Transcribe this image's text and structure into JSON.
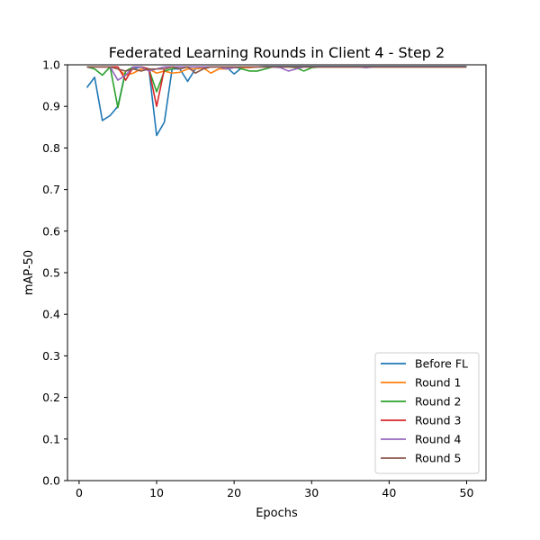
{
  "chart_data": {
    "type": "line",
    "title": "Federated Learning Rounds in Client 4 - Step 2",
    "xlabel": "Epochs",
    "ylabel": "mAP-50",
    "xlim": [
      -1.5,
      52.5
    ],
    "ylim": [
      0.0,
      1.0
    ],
    "xticks": [
      0,
      10,
      20,
      30,
      40,
      50
    ],
    "yticks": [
      0.0,
      0.1,
      0.2,
      0.3,
      0.4,
      0.5,
      0.6,
      0.7,
      0.8,
      0.9,
      1.0
    ],
    "xtick_labels": [
      "0",
      "10",
      "20",
      "30",
      "40",
      "50"
    ],
    "ytick_labels": [
      "0.0",
      "0.1",
      "0.2",
      "0.3",
      "0.4",
      "0.5",
      "0.6",
      "0.7",
      "0.8",
      "0.9",
      "1.0"
    ],
    "grid": false,
    "legend_position": "lower-right",
    "x": [
      1,
      2,
      3,
      4,
      5,
      6,
      7,
      8,
      9,
      10,
      11,
      12,
      13,
      14,
      15,
      16,
      17,
      18,
      19,
      20,
      21,
      22,
      23,
      24,
      25,
      26,
      27,
      28,
      29,
      30,
      31,
      32,
      33,
      34,
      35,
      36,
      37,
      38,
      39,
      40,
      41,
      42,
      43,
      44,
      45,
      46,
      47,
      48,
      49,
      50
    ],
    "series": [
      {
        "name": "Before FL",
        "color": "#1f77b4",
        "values": [
          0.945,
          0.97,
          0.866,
          0.878,
          0.9,
          0.985,
          0.99,
          0.995,
          0.99,
          0.83,
          0.862,
          0.99,
          0.99,
          0.96,
          0.99,
          0.993,
          0.995,
          0.995,
          0.995,
          0.978,
          0.993,
          0.995,
          0.995,
          0.996,
          0.996,
          0.996,
          0.996,
          0.996,
          0.996,
          0.996,
          0.996,
          0.996,
          0.996,
          0.996,
          0.996,
          0.996,
          0.996,
          0.996,
          0.996,
          0.996,
          0.996,
          0.996,
          0.996,
          0.996,
          0.996,
          0.996,
          0.996,
          0.996,
          0.996,
          0.996
        ]
      },
      {
        "name": "Round 1",
        "color": "#ff7f0e",
        "values": [
          0.995,
          0.995,
          0.995,
          0.995,
          0.99,
          0.975,
          0.98,
          0.99,
          0.99,
          0.98,
          0.985,
          0.98,
          0.982,
          0.99,
          0.99,
          0.993,
          0.98,
          0.99,
          0.99,
          0.993,
          0.993,
          0.993,
          0.995,
          0.995,
          0.995,
          0.995,
          0.995,
          0.995,
          0.995,
          0.995,
          0.995,
          0.995,
          0.995,
          0.995,
          0.995,
          0.995,
          0.995,
          0.995,
          0.995,
          0.995,
          0.995,
          0.995,
          0.995,
          0.995,
          0.995,
          0.995,
          0.995,
          0.995,
          0.995,
          0.995
        ]
      },
      {
        "name": "Round 2",
        "color": "#2ca02c",
        "values": [
          0.995,
          0.99,
          0.975,
          0.995,
          0.897,
          0.985,
          0.995,
          0.995,
          0.99,
          0.935,
          0.985,
          0.99,
          0.995,
          0.995,
          0.995,
          0.995,
          0.995,
          0.995,
          0.995,
          0.995,
          0.99,
          0.985,
          0.985,
          0.99,
          0.995,
          0.995,
          0.995,
          0.993,
          0.985,
          0.993,
          0.995,
          0.995,
          0.995,
          0.995,
          0.995,
          0.995,
          0.995,
          0.995,
          0.995,
          0.995,
          0.995,
          0.995,
          0.995,
          0.995,
          0.995,
          0.995,
          0.995,
          0.995,
          0.995,
          0.995
        ]
      },
      {
        "name": "Round 3",
        "color": "#d62728",
        "values": [
          0.995,
          0.995,
          0.995,
          0.995,
          0.995,
          0.963,
          0.995,
          0.995,
          0.99,
          0.9,
          0.99,
          0.995,
          0.995,
          0.995,
          0.995,
          0.995,
          0.995,
          0.995,
          0.995,
          0.995,
          0.995,
          0.995,
          0.995,
          0.995,
          0.995,
          0.995,
          0.995,
          0.995,
          0.995,
          0.995,
          0.995,
          0.995,
          0.995,
          0.995,
          0.995,
          0.995,
          0.995,
          0.995,
          0.995,
          0.995,
          0.995,
          0.995,
          0.995,
          0.995,
          0.995,
          0.995,
          0.995,
          0.995,
          0.995,
          0.995
        ]
      },
      {
        "name": "Round 4",
        "color": "#9467bd",
        "values": [
          0.995,
          0.995,
          0.995,
          0.995,
          0.963,
          0.975,
          0.995,
          0.995,
          0.985,
          0.99,
          0.995,
          0.995,
          0.995,
          0.995,
          0.995,
          0.995,
          0.995,
          0.995,
          0.99,
          0.993,
          0.995,
          0.995,
          0.995,
          0.995,
          0.995,
          0.993,
          0.985,
          0.99,
          0.995,
          0.995,
          0.995,
          0.995,
          0.995,
          0.995,
          0.995,
          0.995,
          0.993,
          0.995,
          0.995,
          0.995,
          0.995,
          0.995,
          0.995,
          0.995,
          0.995,
          0.995,
          0.995,
          0.995,
          0.995,
          0.995
        ]
      },
      {
        "name": "Round 5",
        "color": "#8c564b",
        "values": [
          0.995,
          0.995,
          0.995,
          0.995,
          0.99,
          0.985,
          0.99,
          0.985,
          0.99,
          0.99,
          0.99,
          0.995,
          0.99,
          0.995,
          0.98,
          0.99,
          0.995,
          0.995,
          0.995,
          0.995,
          0.995,
          0.995,
          0.995,
          0.995,
          0.995,
          0.995,
          0.995,
          0.995,
          0.995,
          0.995,
          0.995,
          0.995,
          0.995,
          0.995,
          0.995,
          0.995,
          0.995,
          0.995,
          0.995,
          0.995,
          0.995,
          0.995,
          0.995,
          0.995,
          0.995,
          0.995,
          0.995,
          0.995,
          0.995,
          0.995
        ]
      }
    ]
  }
}
